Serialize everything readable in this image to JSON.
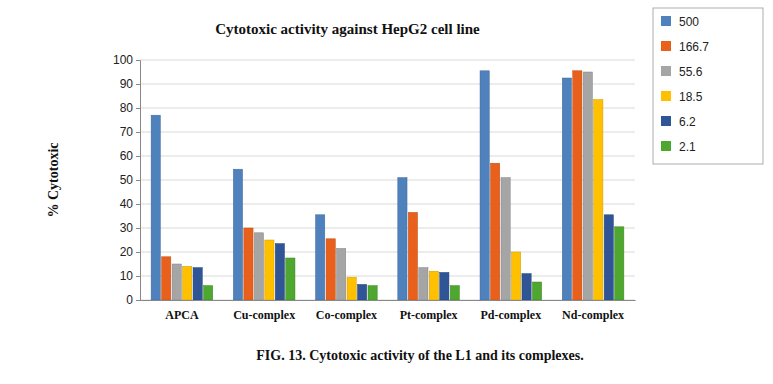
{
  "chart_data": {
    "type": "bar",
    "title": "Cytotoxic activity against HepG2 cell line",
    "y_label": "% Cytotoxic",
    "caption": "FIG. 13. Cytotoxic activity of the L1 and its complexes.",
    "categories": [
      "APCA",
      "Cu-complex",
      "Co-complex",
      "Pt-complex",
      "Pd-complex",
      "Nd-complex"
    ],
    "series": [
      {
        "name": "500",
        "color": "#4f81bd",
        "values": [
          77,
          54.5,
          35.5,
          51,
          95.5,
          92.5
        ]
      },
      {
        "name": "166.7",
        "color": "#e8601c",
        "values": [
          18,
          30,
          25.5,
          36.5,
          57,
          95.5
        ]
      },
      {
        "name": "55.6",
        "color": "#a5a5a5",
        "values": [
          15,
          28,
          21.5,
          13.5,
          51,
          95
        ]
      },
      {
        "name": "18.5",
        "color": "#ffc000",
        "values": [
          14,
          25,
          9.5,
          12,
          20,
          83.5
        ]
      },
      {
        "name": "6.2",
        "color": "#2f5597",
        "values": [
          13.5,
          23.5,
          6.5,
          11.5,
          11,
          35.5
        ]
      },
      {
        "name": "2.1",
        "color": "#4ea72e",
        "values": [
          6,
          17.5,
          6,
          6,
          7.5,
          30.5
        ]
      }
    ],
    "ylim": [
      0,
      100
    ],
    "yticks": [
      0,
      10,
      20,
      30,
      40,
      50,
      60,
      70,
      80,
      90,
      100
    ],
    "grid": true,
    "legend": "right"
  }
}
